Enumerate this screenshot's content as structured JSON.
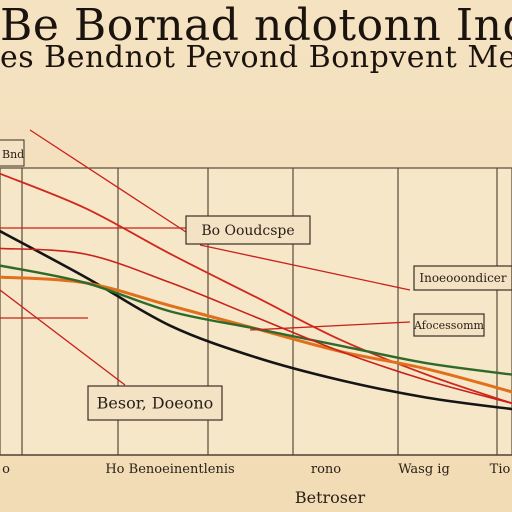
{
  "title": {
    "line1": "Be Bornad ndotonn Ind",
    "line2": "es Bendnot Pevond Bonpvent Menego"
  },
  "chart_data": {
    "type": "line",
    "legend_box": "Bnd",
    "x": [
      0,
      1,
      2,
      3,
      4,
      5,
      6
    ],
    "ylim": [
      0,
      100
    ],
    "xlim": [
      0,
      6
    ],
    "tick_labels": [
      "o",
      "Ho Benoeinentlenis",
      "rono",
      "Wasg ig",
      "Tio"
    ],
    "xlabel": "Betroser",
    "series": [
      {
        "color": "#d0281e",
        "values": [
          98,
          86,
          70,
          55,
          40,
          28,
          18
        ]
      },
      {
        "color": "#151515",
        "values": [
          78,
          62,
          45,
          34,
          26,
          20,
          16
        ]
      },
      {
        "color": "#e0701c",
        "values": [
          62,
          60,
          52,
          44,
          36,
          30,
          22
        ]
      },
      {
        "color": "#2f6a2a",
        "values": [
          66,
          60,
          50,
          44,
          38,
          32,
          28
        ]
      },
      {
        "color": "#c8221b",
        "values": [
          72,
          70,
          60,
          48,
          36,
          26,
          18
        ]
      }
    ],
    "annotations": [
      {
        "label": "Bo Ooudcspe"
      },
      {
        "label": "Inoeooondicer"
      },
      {
        "label": "Afocessomm"
      },
      {
        "label": "Besor, Doeono"
      }
    ]
  }
}
